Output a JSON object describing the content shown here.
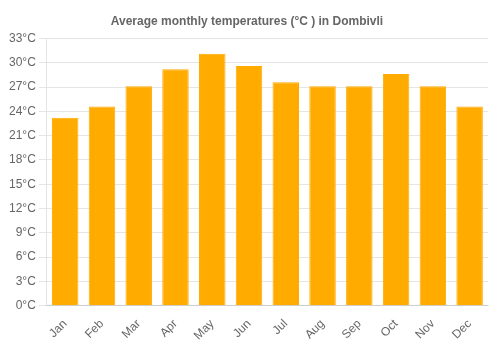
{
  "chart_data": {
    "type": "bar",
    "title": "Average monthly temperatures (°C ) in Dombivli",
    "categories": [
      "Jan",
      "Feb",
      "Mar",
      "Apr",
      "May",
      "Jun",
      "Jul",
      "Aug",
      "Sep",
      "Oct",
      "Nov",
      "Dec"
    ],
    "values": [
      23.2,
      24.6,
      27.1,
      29.2,
      31.1,
      29.6,
      27.6,
      27.1,
      27.1,
      28.6,
      27.1,
      24.6
    ],
    "color": "#FFAB00",
    "ylim": [
      0,
      33
    ],
    "yticks": [
      {
        "value": 0,
        "label": "0°C"
      },
      {
        "value": 3,
        "label": "3°C"
      },
      {
        "value": 6,
        "label": "6°C"
      },
      {
        "value": 9,
        "label": "9°C"
      },
      {
        "value": 12,
        "label": "12°C"
      },
      {
        "value": 15,
        "label": "15°C"
      },
      {
        "value": 18,
        "label": "18°C"
      },
      {
        "value": 21,
        "label": "21°C"
      },
      {
        "value": 24,
        "label": "24°C"
      },
      {
        "value": 27,
        "label": "27°C"
      },
      {
        "value": 30,
        "label": "30°C"
      },
      {
        "value": 33,
        "label": "33°C"
      }
    ],
    "grid": true
  }
}
